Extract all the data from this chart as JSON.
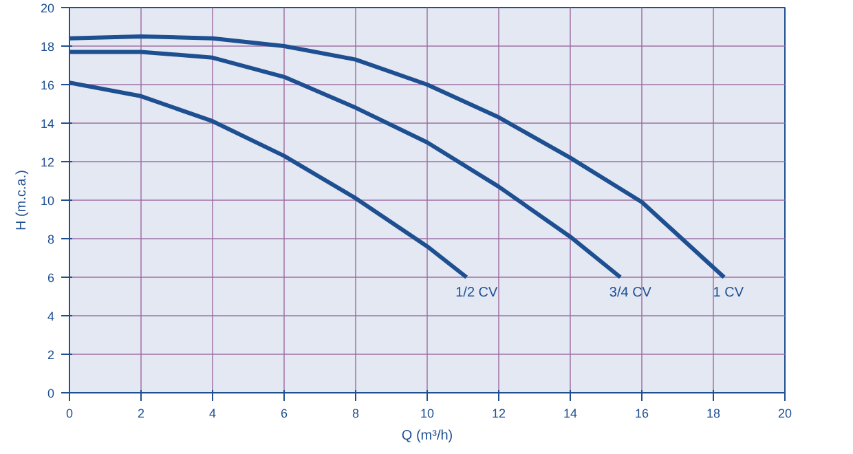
{
  "chart_data": {
    "type": "line",
    "xlabel": "Q (m³/h)",
    "ylabel": "H (m.c.a.)",
    "xlim": [
      0,
      20
    ],
    "ylim": [
      0,
      20
    ],
    "xticks": [
      0,
      2,
      4,
      6,
      8,
      10,
      12,
      14,
      16,
      18,
      20
    ],
    "yticks": [
      0,
      2,
      4,
      6,
      8,
      10,
      12,
      14,
      16,
      18,
      20
    ],
    "grid": true,
    "marker": "none",
    "line_style": "solid",
    "series": [
      {
        "name": "1/2 CV",
        "color": "#1d4f91",
        "x": [
          0,
          2,
          4,
          6,
          8,
          10,
          11.1
        ],
        "values": [
          16.1,
          15.4,
          14.1,
          12.3,
          10.1,
          7.6,
          6
        ]
      },
      {
        "name": "3/4 CV",
        "color": "#1d4f91",
        "x": [
          0,
          2,
          4,
          6,
          8,
          10,
          12,
          14,
          15.4
        ],
        "values": [
          17.7,
          17.7,
          17.4,
          16.4,
          14.8,
          13,
          10.7,
          8.1,
          6
        ]
      },
      {
        "name": "1 CV",
        "color": "#1d4f91",
        "x": [
          0,
          2,
          4,
          6,
          8,
          10,
          12,
          14,
          16,
          18.3
        ],
        "values": [
          18.4,
          18.5,
          18.4,
          18,
          17.3,
          16,
          14.3,
          12.2,
          9.9,
          6
        ]
      }
    ]
  }
}
